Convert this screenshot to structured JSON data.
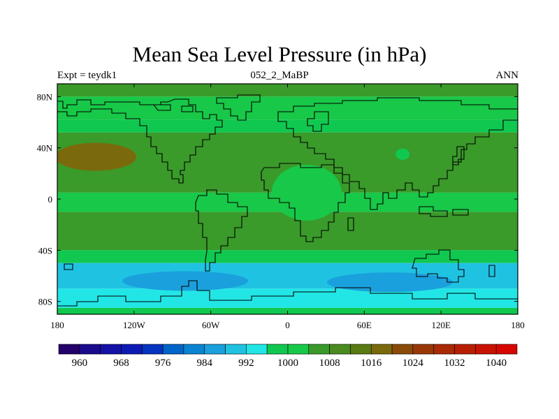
{
  "title": "Mean Sea Level Pressure (in hPa)",
  "subtitle_left": "Expt = teydk1",
  "subtitle_center": "052_2_MaBP",
  "subtitle_right": "ANN",
  "map": {
    "projection": "cylindrical equidistant",
    "lon_range": [
      -180,
      180
    ],
    "lat_range": [
      -90,
      90
    ],
    "lon_ticks": [
      {
        "value": -180,
        "label": "180"
      },
      {
        "value": -120,
        "label": "120W"
      },
      {
        "value": -60,
        "label": "60W"
      },
      {
        "value": 0,
        "label": "0"
      },
      {
        "value": 60,
        "label": "60E"
      },
      {
        "value": 120,
        "label": "120E"
      },
      {
        "value": 180,
        "label": "180"
      }
    ],
    "lat_ticks": [
      {
        "value": 80,
        "label": "80N"
      },
      {
        "value": 40,
        "label": "40N"
      },
      {
        "value": 0,
        "label": "0"
      },
      {
        "value": -40,
        "label": "40S"
      },
      {
        "value": -80,
        "label": "80S"
      }
    ],
    "pressure_bands_hpa": [
      {
        "lat": [
          80,
          90
        ],
        "level": 1004
      },
      {
        "lat": [
          62,
          80
        ],
        "level": 1001
      },
      {
        "lat": [
          52,
          62
        ],
        "level": 998
      },
      {
        "lat": [
          12,
          52
        ],
        "level": 1006
      },
      {
        "lat": [
          5,
          12
        ],
        "level": 1004
      },
      {
        "lat": [
          -10,
          5
        ],
        "level": 1001
      },
      {
        "lat": [
          -40,
          -10
        ],
        "level": 1007
      },
      {
        "lat": [
          -50,
          -40
        ],
        "level": 998
      },
      {
        "lat": [
          -70,
          -50
        ],
        "level": 988
      },
      {
        "lat": [
          -85,
          -70
        ],
        "level": 993
      },
      {
        "lat": [
          -90,
          -85
        ],
        "level": 998
      }
    ],
    "pressure_features_hpa": [
      {
        "name": "North Pacific high",
        "lon": -150,
        "lat": 33,
        "level": 1018
      },
      {
        "name": "Southern Ocean low",
        "lon": -80,
        "lat": -64,
        "level": 985
      },
      {
        "name": "Indian Ocean low",
        "lon": 80,
        "lat": -65,
        "level": 985
      },
      {
        "name": "Africa thermal low",
        "lon": 15,
        "lat": 5,
        "level": 1001
      },
      {
        "name": "Asia thermal low",
        "lon": 90,
        "lat": 35,
        "level": 996
      }
    ]
  },
  "colorbar": {
    "colors": [
      "#24006a",
      "#1a0a8c",
      "#1411a6",
      "#0d1ab4",
      "#0534c0",
      "#0064c8",
      "#0a84d2",
      "#1aa0dc",
      "#20c2e2",
      "#22e6e6",
      "#10c850",
      "#18c848",
      "#3a9a2a",
      "#4a8a1e",
      "#5a7a12",
      "#7a6a0c",
      "#8a4a08",
      "#983808",
      "#a82a06",
      "#b81e04",
      "#c81202",
      "#d80600"
    ],
    "labels": [
      "960",
      "968",
      "976",
      "984",
      "992",
      "1000",
      "1008",
      "1016",
      "1024",
      "1032",
      "1040"
    ],
    "min": 956,
    "step": 4
  }
}
